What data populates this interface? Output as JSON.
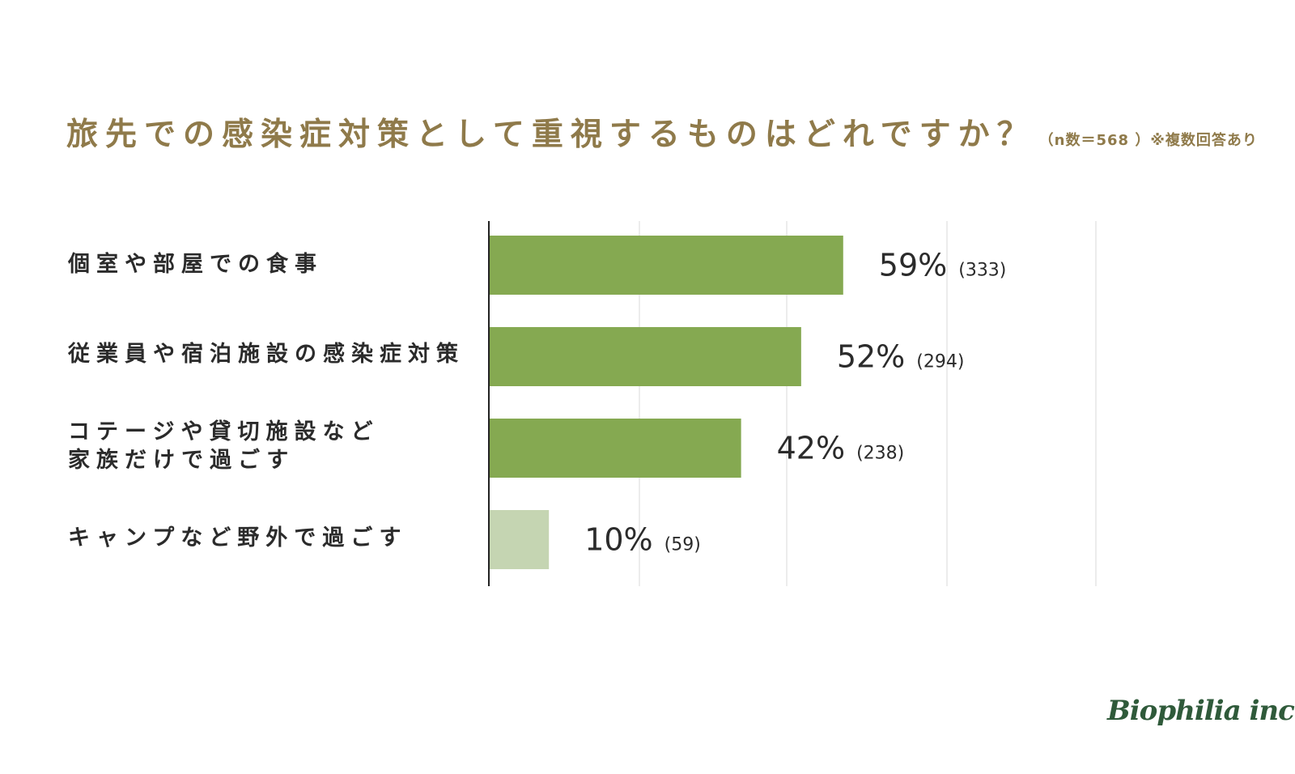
{
  "title": "旅先での感染症対策として重視するものはどれですか？",
  "subtitle": "（n数＝568 ）※複数回答あり",
  "logo": "Biophilia inc.",
  "colors": {
    "title": "#8f7a4a",
    "bar": "#85a951",
    "bar_light": "#c5d5b2",
    "axis": "#222222",
    "grid": "#e6e6e6",
    "label": "#2b2b2b",
    "logo": "#2f5a3a"
  },
  "chart_data": {
    "type": "bar",
    "orientation": "horizontal",
    "categories": [
      "個室や部屋での食事",
      "従業員や宿泊施設の感染症対策",
      "コテージや貸切施設など\n家族だけで過ごす",
      "キャンプなど野外で過ごす"
    ],
    "values": [
      59,
      52,
      42,
      10
    ],
    "value_labels": [
      "59%",
      "52%",
      "42%",
      "10%"
    ],
    "counts": [
      "(333)",
      "(294)",
      "(238)",
      "(59)"
    ],
    "unit": "%",
    "xlim": [
      0,
      100
    ],
    "grid": true,
    "legend": false
  }
}
